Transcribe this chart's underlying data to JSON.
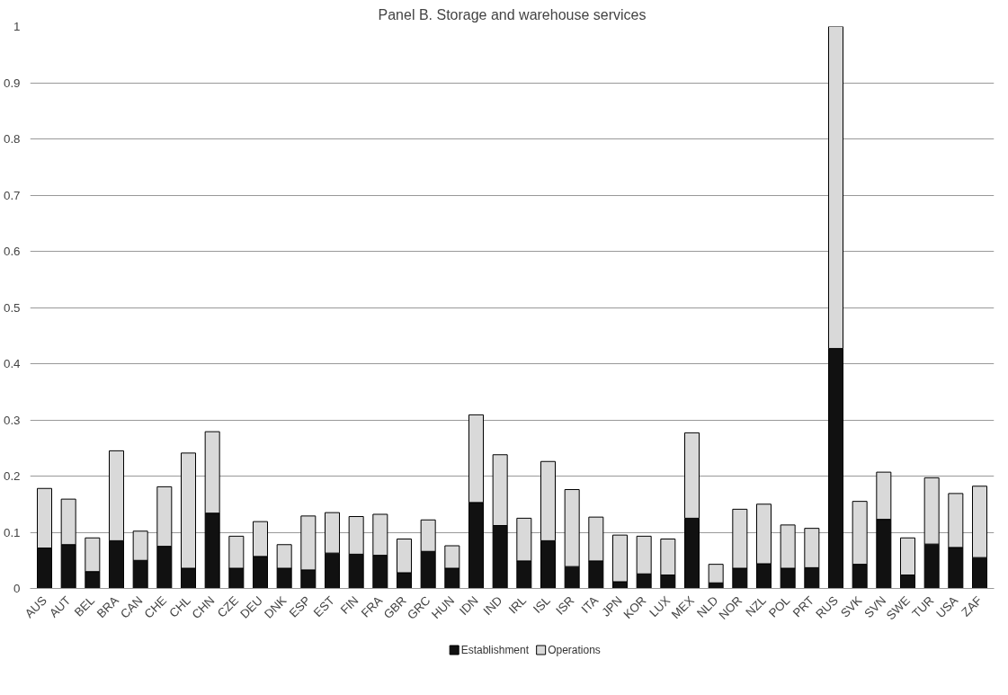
{
  "chart_data": {
    "type": "bar",
    "title": "Panel B. Storage and warehouse services",
    "stacked": true,
    "categories": [
      "AUS",
      "AUT",
      "BEL",
      "BRA",
      "CAN",
      "CHE",
      "CHL",
      "CHN",
      "CZE",
      "DEU",
      "DNK",
      "ESP",
      "EST",
      "FIN",
      "FRA",
      "GBR",
      "GRC",
      "HUN",
      "IDN",
      "IND",
      "IRL",
      "ISL",
      "ISR",
      "ITA",
      "JPN",
      "KOR",
      "LUX",
      "MEX",
      "NLD",
      "NOR",
      "NZL",
      "POL",
      "PRT",
      "RUS",
      "SVK",
      "SVN",
      "SWE",
      "TUR",
      "USA",
      "ZAF"
    ],
    "series": [
      {
        "name": "Establishment",
        "color": "#111111",
        "values": [
          0.072,
          0.078,
          0.03,
          0.085,
          0.05,
          0.075,
          0.036,
          0.134,
          0.036,
          0.057,
          0.036,
          0.033,
          0.063,
          0.061,
          0.059,
          0.028,
          0.066,
          0.036,
          0.153,
          0.112,
          0.049,
          0.085,
          0.039,
          0.049,
          0.012,
          0.026,
          0.024,
          0.125,
          0.01,
          0.036,
          0.044,
          0.036,
          0.037,
          0.427,
          0.043,
          0.123,
          0.024,
          0.079,
          0.073,
          0.055
        ]
      },
      {
        "name": "Operations",
        "color": "#d9d9d9",
        "values": [
          0.106,
          0.081,
          0.06,
          0.16,
          0.052,
          0.106,
          0.205,
          0.145,
          0.057,
          0.062,
          0.042,
          0.096,
          0.072,
          0.067,
          0.073,
          0.06,
          0.056,
          0.04,
          0.156,
          0.126,
          0.076,
          0.141,
          0.137,
          0.078,
          0.083,
          0.067,
          0.064,
          0.152,
          0.033,
          0.105,
          0.106,
          0.077,
          0.07,
          0.573,
          0.112,
          0.084,
          0.066,
          0.118,
          0.096,
          0.127
        ]
      }
    ],
    "ylim": [
      0,
      1
    ],
    "yticks": [
      0,
      0.1,
      0.2,
      0.3,
      0.4,
      0.5,
      0.6,
      0.7,
      0.8,
      0.9,
      1
    ],
    "grid": "y",
    "legend": "bottom"
  }
}
